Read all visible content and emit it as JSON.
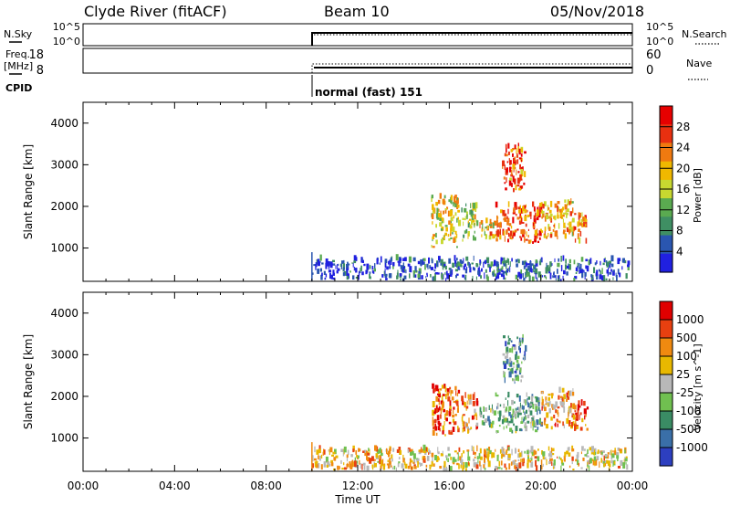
{
  "header": {
    "station": "Clyde River (fitACF)",
    "beam": "Beam 10",
    "date": "05/Nov/2018"
  },
  "top_panels": {
    "nsky_label": "N.Sky",
    "nsearch_label": "N.Search",
    "nsky_ticks": [
      "10^5",
      "10^0"
    ],
    "nsearch_ticks": [
      "10^5",
      "10^0"
    ],
    "freq_label": "Freq.",
    "freq_unit": "[MHz]",
    "freq_ticks": [
      "18",
      "8"
    ],
    "nave_label": "Nave",
    "nave_ticks": [
      "60",
      "0"
    ],
    "cpid_label": "CPID",
    "cpid_mode": "normal (fast) 151"
  },
  "colors": {
    "power_scale": [
      "#2020e0",
      "#2a56b0",
      "#3f8f63",
      "#5aaa50",
      "#c8d830",
      "#f0b800",
      "#f07a10",
      "#e83010",
      "#e60000"
    ],
    "velocity_scale": [
      "#2d3fc0",
      "#3a6fa8",
      "#3a8c64",
      "#70c050",
      "#b8b8b8",
      "#e8b800",
      "#f08a10",
      "#e84010",
      "#e00000"
    ]
  },
  "xaxis": {
    "label": "Time UT",
    "ticks": [
      "00:00",
      "04:00",
      "08:00",
      "12:00",
      "16:00",
      "20:00",
      "00:00"
    ]
  },
  "chart_data": [
    {
      "type": "heatmap",
      "panel": "power",
      "ylabel": "Slant Range [km]",
      "yticks": [
        "4000",
        "3000",
        "2000",
        "1000"
      ],
      "ylim": [
        200,
        4500
      ],
      "xlim_hours": [
        0,
        24
      ],
      "colorbar_label": "Power [dB]",
      "colorbar_ticks": [
        "28",
        "24",
        "20",
        "16",
        "12",
        "8",
        "4"
      ],
      "colorbar_range": [
        0,
        32
      ],
      "data_start_hour": 10.0,
      "regions": [
        {
          "t": [
            15.2,
            16.4
          ],
          "r": [
            1000,
            2200
          ],
          "level": 0.55
        },
        {
          "t": [
            16.5,
            17.2
          ],
          "r": [
            1100,
            2000
          ],
          "level": 0.5
        },
        {
          "t": [
            17.3,
            18.0
          ],
          "r": [
            1200,
            1700
          ],
          "level": 0.6
        },
        {
          "t": [
            18.0,
            20.0
          ],
          "r": [
            1100,
            2000
          ],
          "level": 0.8
        },
        {
          "t": [
            18.3,
            19.3
          ],
          "r": [
            2300,
            3400
          ],
          "level": 0.75
        },
        {
          "t": [
            20.0,
            21.4
          ],
          "r": [
            1200,
            2100
          ],
          "level": 0.65
        },
        {
          "t": [
            21.4,
            22.0
          ],
          "r": [
            1100,
            1800
          ],
          "level": 0.7
        },
        {
          "t": [
            10.0,
            23.8
          ],
          "r": [
            200,
            700
          ],
          "level": 0.15
        }
      ]
    },
    {
      "type": "heatmap",
      "panel": "velocity",
      "ylabel": "Slant Range [km]",
      "yticks": [
        "4000",
        "3000",
        "2000",
        "1000"
      ],
      "ylim": [
        200,
        4500
      ],
      "xlim_hours": [
        0,
        24
      ],
      "colorbar_label": "Velocity [m s^-1]",
      "colorbar_ticks": [
        "1000",
        "500",
        "100",
        "25",
        "-25",
        "-100",
        "-500",
        "-1000"
      ],
      "data_start_hour": 10.0,
      "regions": [
        {
          "t": [
            15.2,
            16.4
          ],
          "r": [
            1000,
            2200
          ],
          "level": 0.8
        },
        {
          "t": [
            16.5,
            17.2
          ],
          "r": [
            1100,
            2000
          ],
          "level": 0.75
        },
        {
          "t": [
            17.3,
            18.0
          ],
          "r": [
            1200,
            1700
          ],
          "level": 0.4
        },
        {
          "t": [
            18.0,
            20.0
          ],
          "r": [
            1100,
            2000
          ],
          "level": 0.35
        },
        {
          "t": [
            18.3,
            19.3
          ],
          "r": [
            2300,
            3400
          ],
          "level": 0.3
        },
        {
          "t": [
            20.0,
            21.4
          ],
          "r": [
            1200,
            2100
          ],
          "level": 0.7
        },
        {
          "t": [
            21.4,
            22.0
          ],
          "r": [
            1100,
            1800
          ],
          "level": 0.8
        },
        {
          "t": [
            10.0,
            23.8
          ],
          "r": [
            200,
            700
          ],
          "level": 0.6
        }
      ]
    }
  ]
}
